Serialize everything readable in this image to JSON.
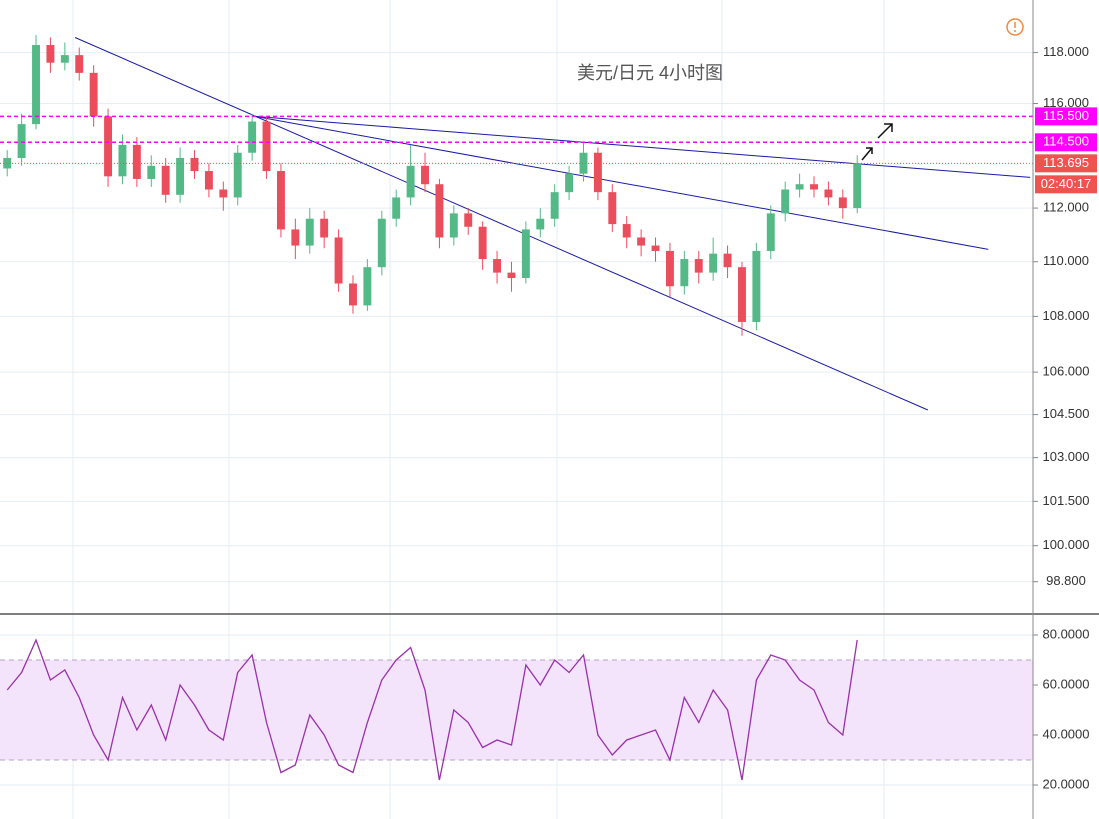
{
  "chart_data": [
    {
      "type": "candlestick",
      "title": "美元/日元 4小时图",
      "log_scale": true,
      "grid": true,
      "xlim": [
        -0.5,
        71.2
      ],
      "ylim": [
        97.8,
        119.9
      ],
      "yticks": [
        {
          "value": 98.8,
          "label": "98.800"
        },
        {
          "value": 100,
          "label": "100.000"
        },
        {
          "value": 101.5,
          "label": "101.500"
        },
        {
          "value": 103,
          "label": "103.000"
        },
        {
          "value": 104.5,
          "label": "104.500"
        },
        {
          "value": 106,
          "label": "106.000"
        },
        {
          "value": 108,
          "label": "108.000"
        },
        {
          "value": 110,
          "label": "110.000"
        },
        {
          "value": 112,
          "label": "112.000"
        },
        {
          "value": 116,
          "label": "116.000"
        },
        {
          "value": 118,
          "label": "118.000"
        }
      ],
      "up_color": "#53b987",
      "down_color": "#eb4d5c",
      "open": [
        113.5,
        113.9,
        115.2,
        118.3,
        117.6,
        117.9,
        117.2,
        115.5,
        113.2,
        114.4,
        113.1,
        113.6,
        112.5,
        113.9,
        113.4,
        112.7,
        112.4,
        114.1,
        115.3,
        113.4,
        111.2,
        110.6,
        111.6,
        110.9,
        109.2,
        108.4,
        109.8,
        111.6,
        112.4,
        113.6,
        112.9,
        110.9,
        111.8,
        111.3,
        110.1,
        109.6,
        109.4,
        111.2,
        111.6,
        112.6,
        113.3,
        114.1,
        112.6,
        111.4,
        110.9,
        110.6,
        110.4,
        109.1,
        110.1,
        109.6,
        110.3,
        109.8,
        107.8,
        110.4,
        111.8,
        112.7,
        112.9,
        112.7,
        112.4,
        112.0
      ],
      "high": [
        114.2,
        115.6,
        118.7,
        118.6,
        118.4,
        118.2,
        117.5,
        115.8,
        114.8,
        114.7,
        114.0,
        113.9,
        114.3,
        114.2,
        113.7,
        113.0,
        114.4,
        115.6,
        115.5,
        113.7,
        111.6,
        112.0,
        111.9,
        111.2,
        109.5,
        110.1,
        111.9,
        112.7,
        114.4,
        114.1,
        113.1,
        112.1,
        112.0,
        111.5,
        110.4,
        110.0,
        111.5,
        112.0,
        112.9,
        113.6,
        114.5,
        114.3,
        112.9,
        111.7,
        111.2,
        110.9,
        110.7,
        110.4,
        110.4,
        110.9,
        110.6,
        110.0,
        110.7,
        112.1,
        113.0,
        113.3,
        113.2,
        113.0,
        112.7,
        114.0
      ],
      "low": [
        113.2,
        113.6,
        115.0,
        117.2,
        117.3,
        116.9,
        115.1,
        112.8,
        112.9,
        112.8,
        112.8,
        112.2,
        112.2,
        113.1,
        112.4,
        111.9,
        112.1,
        113.8,
        113.1,
        110.9,
        110.1,
        110.3,
        110.5,
        108.9,
        108.1,
        108.2,
        109.5,
        111.3,
        112.1,
        112.6,
        110.5,
        110.6,
        111.0,
        109.7,
        109.2,
        108.9,
        109.2,
        110.9,
        111.3,
        112.3,
        113.0,
        112.3,
        111.1,
        110.5,
        110.2,
        110.0,
        108.7,
        108.8,
        109.2,
        109.3,
        109.4,
        107.3,
        107.5,
        110.1,
        111.5,
        112.4,
        112.4,
        112.1,
        111.6,
        111.8
      ],
      "close": [
        113.9,
        115.2,
        118.3,
        117.6,
        117.9,
        117.2,
        115.5,
        113.2,
        114.4,
        113.1,
        113.6,
        112.5,
        113.9,
        113.4,
        112.7,
        112.4,
        114.1,
        115.3,
        113.4,
        111.2,
        110.6,
        111.6,
        110.9,
        109.2,
        108.4,
        109.8,
        111.6,
        112.4,
        113.6,
        112.9,
        110.9,
        111.8,
        111.3,
        110.1,
        109.6,
        109.4,
        111.2,
        111.6,
        112.6,
        113.3,
        114.1,
        112.6,
        111.4,
        110.9,
        110.6,
        110.4,
        109.1,
        110.1,
        109.6,
        110.3,
        109.8,
        107.8,
        110.4,
        111.8,
        112.7,
        112.9,
        112.7,
        112.4,
        112.0,
        113.7
      ],
      "trendline_color": "#1a1aa6",
      "trendlines": [
        {
          "x": [
            4.71,
            63.9
          ],
          "y": [
            118.6,
            104.66
          ]
        },
        {
          "x": [
            17.2,
            68.1
          ],
          "y": [
            115.5,
            110.46
          ]
        },
        {
          "x": [
            17.2,
            71.0
          ],
          "y": [
            115.5,
            113.16
          ]
        }
      ],
      "price_lines": [
        {
          "value": 115.5,
          "label": "115.500",
          "color": "#ff00ff"
        },
        {
          "value": 114.5,
          "label": "114.500",
          "color": "#ff00ff"
        },
        {
          "value": 113.695,
          "label": "113.695",
          "color": "#ef5350"
        }
      ],
      "countdown": "02:40:17"
    },
    {
      "type": "line",
      "grid": true,
      "xlim": [
        -0.5,
        71.2
      ],
      "ylim": [
        8,
        86
      ],
      "yticks": [
        {
          "value": 20,
          "label": "20.0000"
        },
        {
          "value": 40,
          "label": "40.0000"
        },
        {
          "value": 60,
          "label": "60.0000"
        },
        {
          "value": 80,
          "label": "80.0000"
        }
      ],
      "band": [
        30,
        70
      ],
      "band_color": "#f3e3fb",
      "series": [
        {
          "color": "#9a31ab",
          "values": [
            58,
            65,
            78,
            62,
            66,
            55,
            40,
            30,
            55,
            42,
            52,
            38,
            60,
            52,
            42,
            38,
            65,
            72,
            45,
            25,
            28,
            48,
            40,
            28,
            25,
            45,
            62,
            70,
            75,
            58,
            22,
            50,
            45,
            35,
            38,
            36,
            68,
            60,
            70,
            65,
            72,
            40,
            32,
            38,
            40,
            42,
            30,
            55,
            45,
            58,
            50,
            22,
            62,
            72,
            70,
            62,
            58,
            45,
            40,
            78
          ]
        }
      ]
    }
  ]
}
